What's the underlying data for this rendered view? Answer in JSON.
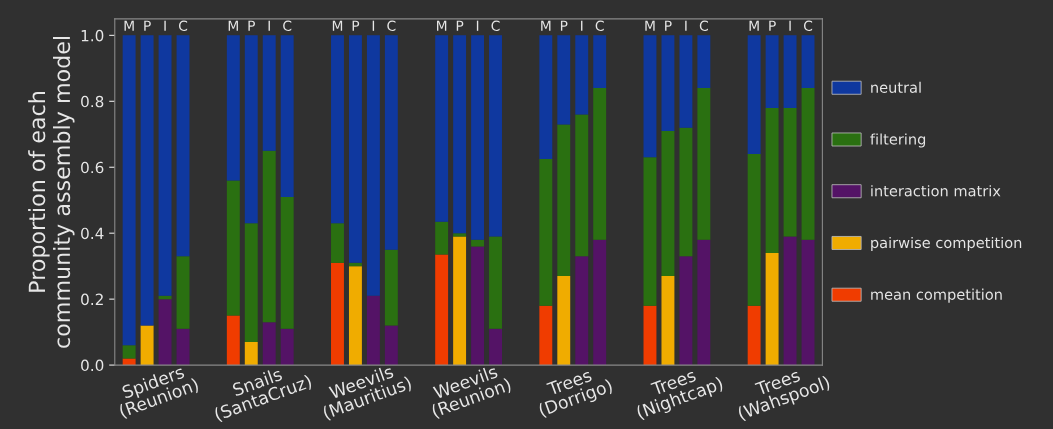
{
  "chart_data": {
    "type": "bar",
    "stacked": true,
    "ylabel": "Proportion of each\ncommunity assembly model",
    "categories": [
      "M",
      "P",
      "I",
      "C",
      "M",
      "P",
      "I",
      "C",
      "M",
      "P",
      "I",
      "C",
      "M",
      "P",
      "I",
      "C",
      "M",
      "P",
      "I",
      "C",
      "M",
      "P",
      "I",
      "C",
      "M",
      "P",
      "I",
      "C"
    ],
    "annotations": [
      "Spiders\n(Reunion)",
      "Snails\n(SantaCruz)",
      "Weevils\n(Mauritius)",
      "Weevils\n(Reunion)",
      "Trees\n(Dorrigo)",
      "Trees\n(Nightcap)",
      "Trees\n(Wahspool)"
    ],
    "series": [
      {
        "name": "mean competition",
        "color": "#f03c00",
        "values": [
          0.02,
          null,
          null,
          null,
          0.15,
          null,
          null,
          null,
          0.31,
          null,
          null,
          null,
          0.335,
          null,
          null,
          null,
          0.18,
          null,
          null,
          null,
          0.18,
          null,
          null,
          null,
          0.18,
          null,
          null,
          null
        ]
      },
      {
        "name": "pairwise competition",
        "color": "#f0ac00",
        "values": [
          null,
          0.12,
          null,
          null,
          null,
          0.07,
          null,
          null,
          null,
          0.3,
          null,
          null,
          null,
          0.39,
          null,
          null,
          null,
          0.27,
          null,
          null,
          null,
          0.27,
          null,
          null,
          null,
          0.34,
          null,
          null
        ]
      },
      {
        "name": "interaction matrix",
        "color": "#541366",
        "values": [
          null,
          null,
          0.2,
          0.11,
          null,
          null,
          0.13,
          0.11,
          null,
          null,
          0.21,
          0.12,
          null,
          null,
          0.36,
          0.11,
          null,
          null,
          0.33,
          0.38,
          null,
          null,
          0.33,
          0.38,
          null,
          null,
          0.39,
          0.38
        ]
      },
      {
        "name": "filtering",
        "color": "#2a7011",
        "values": [
          0.04,
          null,
          0.01,
          0.22,
          0.41,
          0.36,
          0.52,
          0.4,
          0.12,
          0.01,
          null,
          0.23,
          0.1,
          0.01,
          0.02,
          0.28,
          0.445,
          0.46,
          0.43,
          0.46,
          0.45,
          0.44,
          0.39,
          0.46,
          0.46,
          0.44,
          0.39,
          0.46
        ]
      },
      {
        "name": "neutral",
        "color": "#0f389f",
        "values": [
          0.94,
          0.88,
          0.79,
          0.67,
          0.44,
          0.57,
          0.35,
          0.49,
          0.57,
          0.69,
          0.79,
          0.65,
          0.565,
          0.6,
          0.62,
          0.61,
          0.375,
          0.27,
          0.24,
          0.16,
          0.37,
          0.29,
          0.28,
          0.16,
          0.36,
          0.22,
          0.22,
          0.16
        ]
      }
    ],
    "ylim": [
      0,
      1.05
    ],
    "yticks": [
      {
        "value": 0,
        "label": "0.0"
      },
      0.2,
      0.4,
      0.6,
      0.8,
      {
        "value": 1,
        "label": "1.0"
      }
    ],
    "legend": "right",
    "grid": false
  }
}
